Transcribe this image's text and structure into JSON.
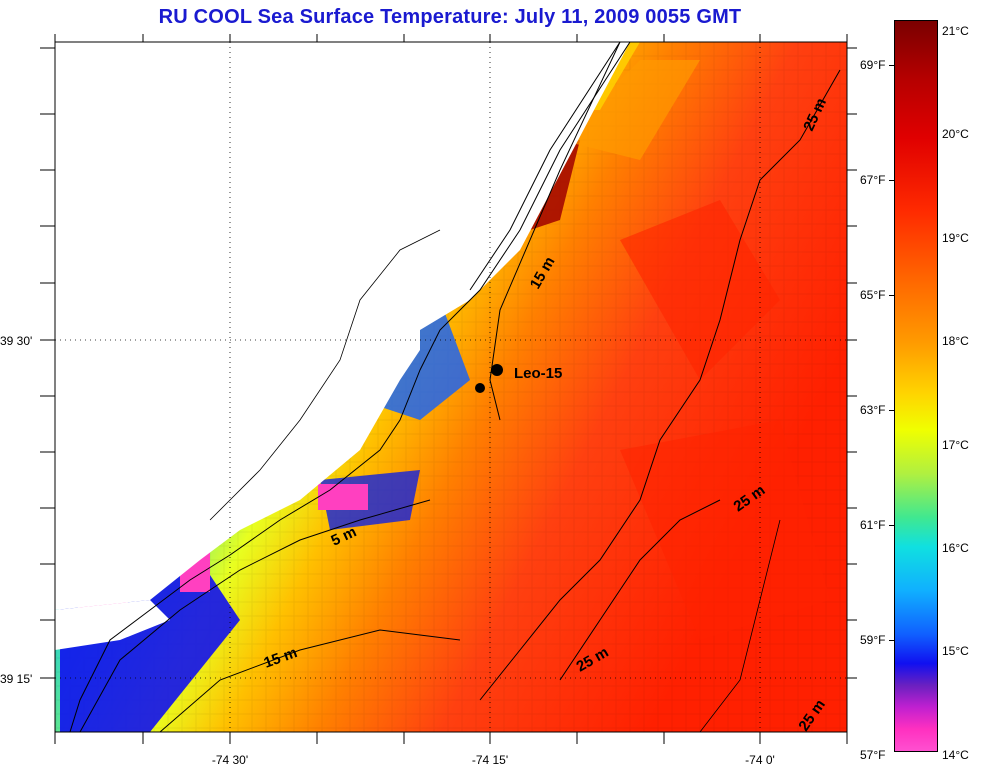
{
  "title": "RU COOL  Sea Surface Temperature:  July 11, 2009 0055 GMT",
  "map": {
    "station_label": "Leo-15",
    "latitude_labels": [
      "39 30'",
      "39 15'"
    ],
    "longitude_labels": [
      "-74 30'",
      "-74 15'",
      "-74 0'"
    ],
    "contour_labels": [
      "15 m",
      "5 m",
      "15 m",
      "25 m",
      "25 m",
      "25 m",
      "25 m"
    ]
  },
  "colorbar": {
    "fahrenheit_labels": [
      "69°F",
      "67°F",
      "65°F",
      "63°F",
      "61°F",
      "59°F",
      "57°F"
    ],
    "celsius_labels": [
      "21°C",
      "20°C",
      "19°C",
      "18°C",
      "17°C",
      "16°C",
      "15°C",
      "14°C"
    ]
  }
}
